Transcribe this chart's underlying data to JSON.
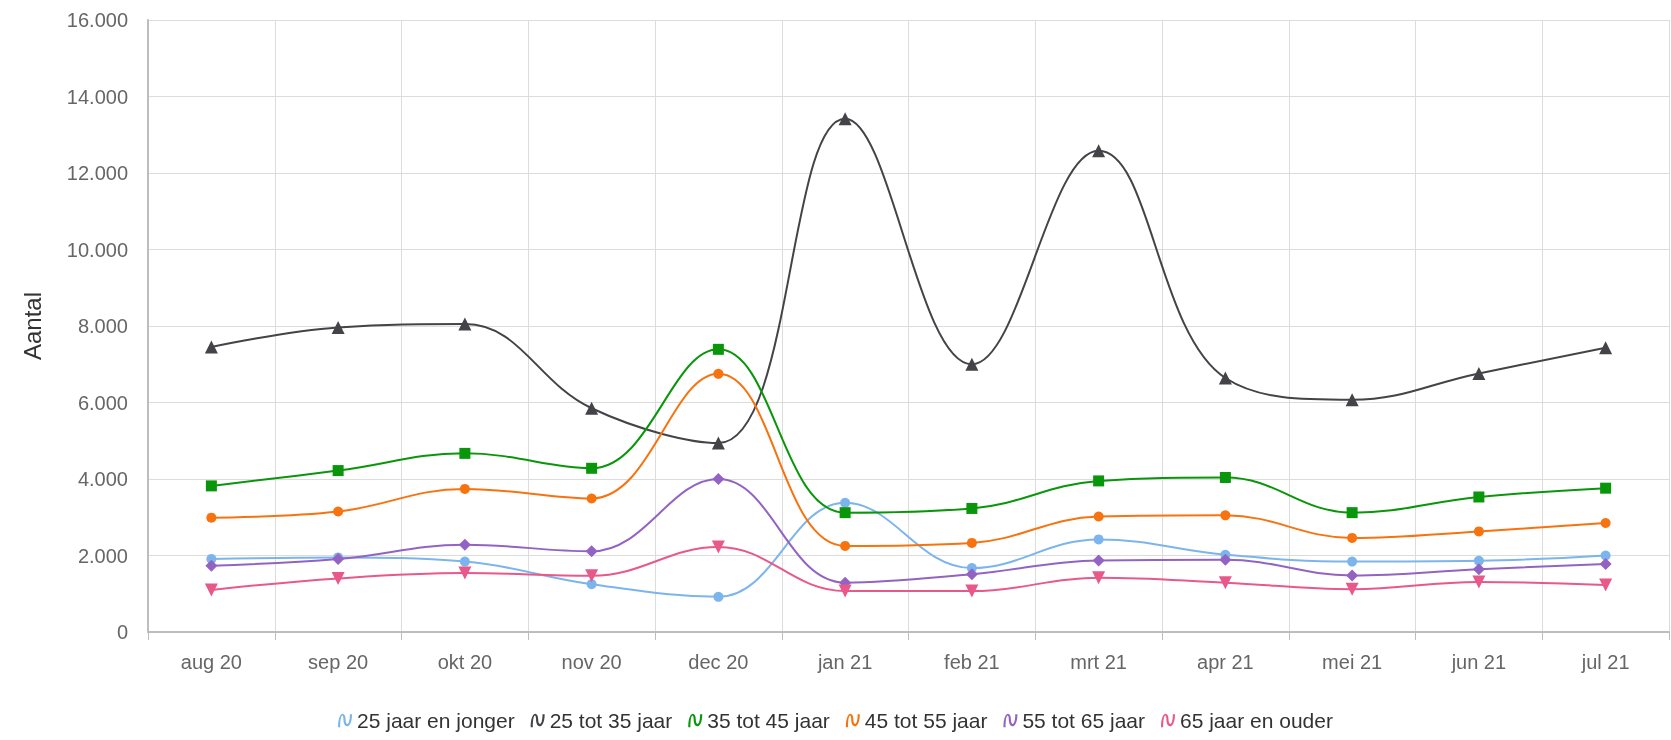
{
  "chart_data": {
    "type": "line",
    "ylabel": "Aantal",
    "categories": [
      "aug 20",
      "sep 20",
      "okt 20",
      "nov 20",
      "dec 20",
      "jan 21",
      "feb 21",
      "mrt 21",
      "apr 21",
      "mei 21",
      "jun 21",
      "jul 21"
    ],
    "ylim": [
      0,
      16000
    ],
    "yticks": [
      0,
      {
        "value": 2000,
        "label": "2.000"
      },
      {
        "value": 4000,
        "label": "4.000"
      },
      {
        "value": 6000,
        "label": "6.000"
      },
      {
        "value": 8000,
        "label": "8.000"
      },
      {
        "value": 10000,
        "label": "10.000"
      },
      {
        "value": 12000,
        "label": "12.000"
      },
      {
        "value": 14000,
        "label": "14.000"
      },
      {
        "value": 16000,
        "label": "16.000"
      }
    ],
    "grid": true,
    "legend": "bottom",
    "series": [
      {
        "name": "25 jaar en jonger",
        "color": "#7cb5ec",
        "marker": "circle",
        "values": [
          1910,
          1950,
          1840,
          1250,
          920,
          3380,
          1670,
          2420,
          2020,
          1840,
          1860,
          2000
        ]
      },
      {
        "name": "25 tot 35 jaar",
        "color": "#434348",
        "marker": "triangle",
        "values": [
          7450,
          7960,
          8050,
          5850,
          4940,
          13420,
          7000,
          12580,
          6640,
          6070,
          6760,
          7430
        ]
      },
      {
        "name": "35 tot 45 jaar",
        "color": "#0a960a",
        "marker": "square",
        "values": [
          3820,
          4220,
          4670,
          4280,
          7390,
          3120,
          3230,
          3950,
          4040,
          3120,
          3530,
          3760
        ]
      },
      {
        "name": "45 tot 55 jaar",
        "color": "#f7730f",
        "marker": "circle",
        "values": [
          2990,
          3150,
          3740,
          3490,
          6750,
          2250,
          2330,
          3020,
          3050,
          2460,
          2630,
          2850
        ]
      },
      {
        "name": "55 tot 65 jaar",
        "color": "#9363c4",
        "marker": "diamond",
        "values": [
          1730,
          1910,
          2280,
          2110,
          4000,
          1290,
          1510,
          1870,
          1890,
          1480,
          1640,
          1780
        ]
      },
      {
        "name": "65 jaar en ouder",
        "color": "#e8588a",
        "marker": "triangle-down",
        "values": [
          1100,
          1400,
          1540,
          1470,
          2220,
          1070,
          1070,
          1420,
          1290,
          1120,
          1310,
          1230
        ]
      }
    ]
  }
}
